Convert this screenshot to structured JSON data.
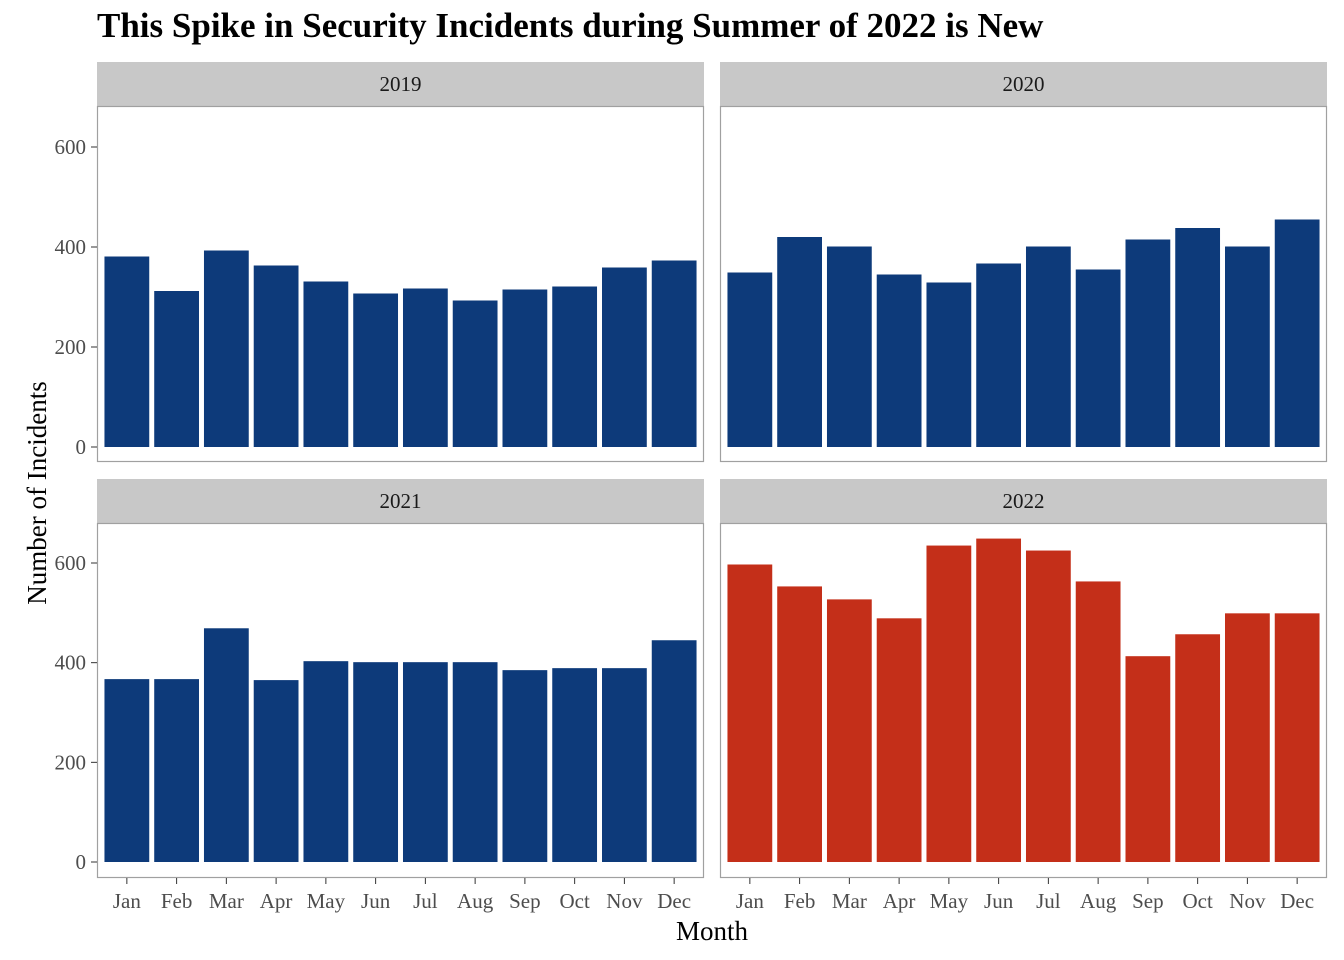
{
  "chart_data": {
    "type": "bar",
    "title": "This Spike in Security Incidents during Summer of 2022 is New",
    "xlabel": "Month",
    "ylabel": "Number of Incidents",
    "categories": [
      "Jan",
      "Feb",
      "Mar",
      "Apr",
      "May",
      "Jun",
      "Jul",
      "Aug",
      "Sep",
      "Oct",
      "Nov",
      "Dec"
    ],
    "ylim": [
      0,
      680
    ],
    "yticks": [
      0,
      200,
      400,
      600
    ],
    "grid": false,
    "colors": {
      "default": "#0d3a7a",
      "highlight": "#c42f19",
      "strip": "#c8c8c8",
      "border": "#a0a0a0"
    },
    "panels": [
      {
        "name": "2019",
        "highlight": false,
        "values": [
          381,
          312,
          393,
          363,
          331,
          307,
          317,
          293,
          315,
          321,
          359,
          373
        ]
      },
      {
        "name": "2020",
        "highlight": false,
        "values": [
          349,
          420,
          401,
          345,
          329,
          367,
          401,
          355,
          415,
          438,
          401,
          455
        ]
      },
      {
        "name": "2021",
        "highlight": false,
        "values": [
          367,
          367,
          469,
          365,
          403,
          401,
          401,
          401,
          385,
          389,
          389,
          445
        ]
      },
      {
        "name": "2022",
        "highlight": true,
        "values": [
          597,
          553,
          527,
          489,
          635,
          649,
          625,
          563,
          413,
          457,
          499,
          499
        ]
      }
    ]
  }
}
